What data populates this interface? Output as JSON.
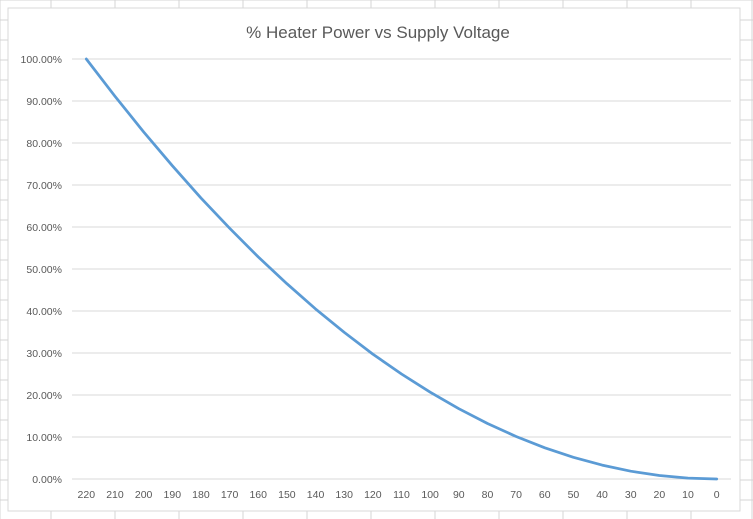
{
  "chart_data": {
    "type": "line",
    "title": "% Heater Power vs Supply Voltage",
    "xlabel": "",
    "ylabel": "",
    "categories": [
      "220",
      "210",
      "200",
      "190",
      "180",
      "170",
      "160",
      "150",
      "140",
      "130",
      "120",
      "110",
      "100",
      "90",
      "80",
      "70",
      "60",
      "50",
      "40",
      "30",
      "20",
      "10",
      "0"
    ],
    "series": [
      {
        "values": [
          100.0,
          91.12,
          82.64,
          74.59,
          66.94,
          59.71,
          52.89,
          46.49,
          40.5,
          34.92,
          29.75,
          25.0,
          20.66,
          16.74,
          13.22,
          10.12,
          7.44,
          5.17,
          3.31,
          1.86,
          0.83,
          0.21,
          0.0
        ]
      }
    ],
    "yticks": [
      "0.00%",
      "10.00%",
      "20.00%",
      "30.00%",
      "40.00%",
      "50.00%",
      "60.00%",
      "70.00%",
      "80.00%",
      "90.00%",
      "100.00%"
    ],
    "ylim": [
      0,
      100
    ],
    "grid": true,
    "legend": "none",
    "colors": {
      "line": "#5b9bd5",
      "grid": "#d9d9d9",
      "text": "#595959",
      "sheet_grid": "#d4d4d4",
      "border": "#d9d9d9"
    }
  }
}
